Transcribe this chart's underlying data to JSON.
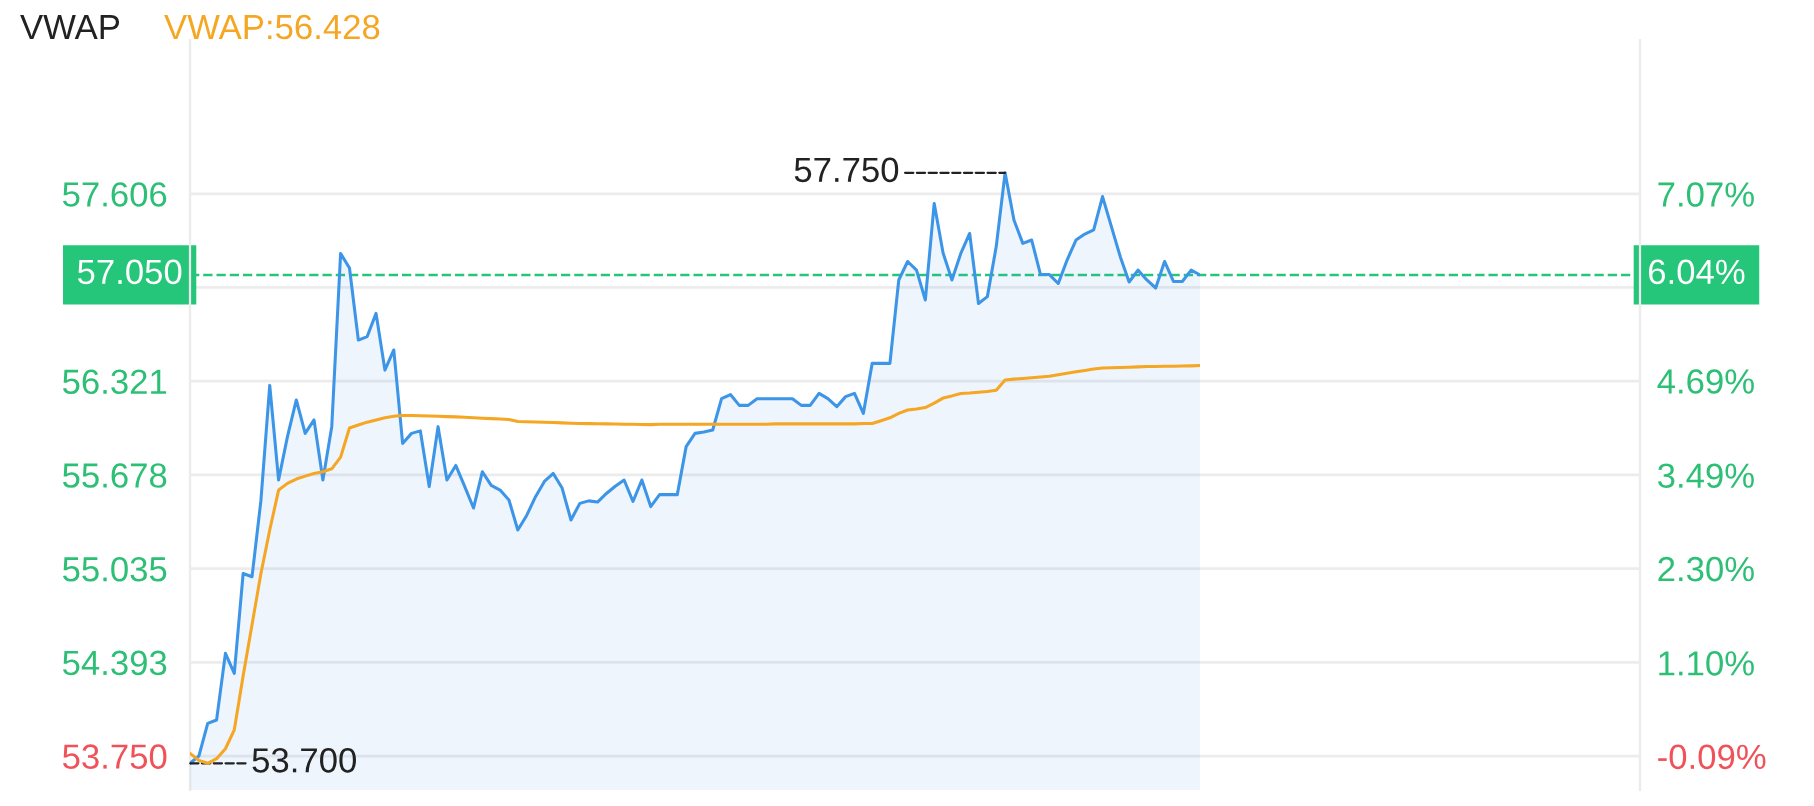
{
  "chart_data": {
    "type": "line",
    "title": "VWAP",
    "categories": [
      null,
      null,
      null,
      null,
      null,
      null,
      null,
      null,
      null,
      null,
      null,
      null,
      null,
      null,
      null,
      null,
      null,
      null,
      null,
      null,
      null,
      null,
      null,
      null,
      null,
      null,
      null,
      null,
      null,
      null,
      null,
      null,
      null,
      null,
      null,
      null,
      null,
      null,
      null,
      null,
      null,
      null,
      null,
      null,
      null,
      null,
      null,
      null,
      null,
      null,
      null,
      null,
      null,
      null,
      null,
      null,
      null,
      null,
      null,
      null,
      null,
      null,
      null,
      null,
      null,
      null,
      null,
      null,
      null,
      null,
      null,
      null,
      null,
      null,
      null,
      null,
      null,
      null,
      null,
      null,
      null,
      null,
      null,
      null,
      null,
      null,
      null,
      null,
      null,
      null,
      null,
      null,
      null,
      null,
      null,
      null,
      null,
      null,
      null,
      null,
      null,
      null,
      null,
      null,
      null,
      null,
      null,
      null,
      null,
      null,
      null,
      null,
      null,
      null,
      null
    ],
    "ylim": [
      53.517,
      58.661
    ],
    "yticks": [
      {
        "value": 53.75,
        "label": "53.750"
      },
      {
        "value": 54.393,
        "label": "54.393"
      },
      {
        "value": 55.035,
        "label": "55.035"
      },
      {
        "value": 55.678,
        "label": "55.678"
      },
      {
        "value": 56.321,
        "label": "56.321"
      },
      {
        "value": 56.964,
        "label": null
      },
      {
        "value": 57.606,
        "label": "57.606"
      }
    ],
    "y2lim": [
      -0.52,
      9.03
    ],
    "y2ticks": [
      {
        "value": -0.09,
        "label": "-0.09%"
      },
      {
        "value": 1.1,
        "label": "1.10%"
      },
      {
        "value": 2.3,
        "label": "2.30%"
      },
      {
        "value": 3.49,
        "label": "3.49%"
      },
      {
        "value": 4.69,
        "label": "4.69%"
      },
      {
        "value": 5.88,
        "label": null
      },
      {
        "value": 7.07,
        "label": "7.07%"
      }
    ],
    "grid": "y",
    "marker": "none",
    "line_style": "solid",
    "series": [
      {
        "type": "area",
        "color": "#3d95e8",
        "values": [
          53.7,
          53.75,
          53.974,
          53.997,
          54.454,
          54.317,
          55.002,
          54.98,
          55.5,
          56.292,
          55.643,
          55.941,
          56.192,
          55.963,
          56.055,
          55.643,
          56.009,
          57.197,
          57.097,
          56.603,
          56.627,
          56.786,
          56.397,
          56.535,
          55.894,
          55.963,
          55.98,
          55.598,
          56.009,
          55.643,
          55.743,
          55.6,
          55.451,
          55.7,
          55.606,
          55.574,
          55.506,
          55.3,
          55.4,
          55.529,
          55.633,
          55.688,
          55.588,
          55.369,
          55.483,
          55.5,
          55.492,
          55.551,
          55.6,
          55.643,
          55.496,
          55.643,
          55.461,
          55.543,
          55.543,
          55.543,
          55.872,
          55.963,
          55.972,
          55.986,
          56.201,
          56.229,
          56.155,
          56.155,
          56.201,
          56.201,
          56.201,
          56.201,
          56.201,
          56.155,
          56.155,
          56.237,
          56.201,
          56.146,
          56.215,
          56.237,
          56.1,
          56.443,
          56.443,
          56.443,
          57.015,
          57.142,
          57.083,
          56.878,
          57.54,
          57.2,
          57.015,
          57.197,
          57.334,
          56.854,
          56.901,
          57.244,
          57.75,
          57.426,
          57.266,
          57.289,
          57.052,
          57.052,
          56.991,
          57.152,
          57.289,
          57.33,
          57.358,
          57.587,
          57.381,
          57.175,
          57.001,
          57.083,
          57.015,
          56.96,
          57.142,
          57.005,
          57.005,
          57.083,
          57.05
        ]
      },
      {
        "type": "line",
        "name": "VWAP:56.428",
        "color": "#f5a623",
        "values": [
          53.768,
          53.72,
          53.7,
          53.732,
          53.8,
          53.93,
          54.3,
          54.65,
          55.0,
          55.3,
          55.574,
          55.62,
          55.65,
          55.67,
          55.688,
          55.7,
          55.72,
          55.8,
          56.0,
          56.02,
          56.04,
          56.055,
          56.07,
          56.08,
          56.086,
          56.085,
          56.084,
          56.082,
          56.08,
          56.078,
          56.076,
          56.073,
          56.07,
          56.067,
          56.064,
          56.061,
          56.058,
          56.045,
          56.043,
          56.041,
          56.039,
          56.037,
          56.035,
          56.033,
          56.031,
          56.03,
          56.029,
          56.028,
          56.027,
          56.026,
          56.025,
          56.024,
          56.023,
          56.025,
          56.025,
          56.025,
          56.025,
          56.025,
          56.025,
          56.025,
          56.025,
          56.025,
          56.025,
          56.025,
          56.025,
          56.025,
          56.028,
          56.028,
          56.028,
          56.028,
          56.028,
          56.028,
          56.028,
          56.028,
          56.028,
          56.028,
          56.031,
          56.031,
          56.05,
          56.07,
          56.1,
          56.123,
          56.13,
          56.14,
          56.17,
          56.205,
          56.22,
          56.237,
          56.24,
          56.245,
          56.25,
          56.258,
          56.329,
          56.335,
          56.34,
          56.345,
          56.35,
          56.355,
          56.365,
          56.375,
          56.385,
          56.395,
          56.405,
          56.411,
          56.413,
          56.415,
          56.417,
          56.419,
          56.421,
          56.422,
          56.423,
          56.424,
          56.425,
          56.426,
          56.428
        ]
      }
    ],
    "ref_lines": [
      {
        "axis": "y",
        "value": 57.05,
        "label": "57.050",
        "color": "#26c67a",
        "line_style": "dashed"
      }
    ],
    "annotations": [
      "57.750",
      "53.700",
      "6.04%"
    ]
  }
}
